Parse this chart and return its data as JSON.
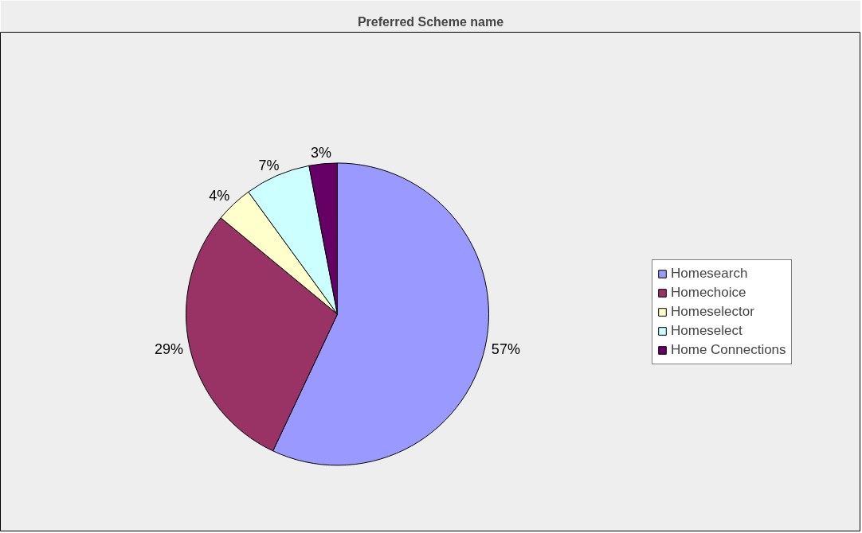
{
  "chart_data": {
    "type": "pie",
    "title": "Preferred Scheme name",
    "categories": [
      "Homesearch",
      "Homechoice",
      "Homeselector",
      "Homeselect",
      "Home Connections"
    ],
    "values": [
      57,
      29,
      4,
      7,
      3
    ],
    "colors": [
      "#9999ff",
      "#993366",
      "#ffffcc",
      "#ccffff",
      "#660066"
    ],
    "value_labels": [
      "57%",
      "29%",
      "4%",
      "7%",
      "3%"
    ],
    "legend": "right"
  }
}
